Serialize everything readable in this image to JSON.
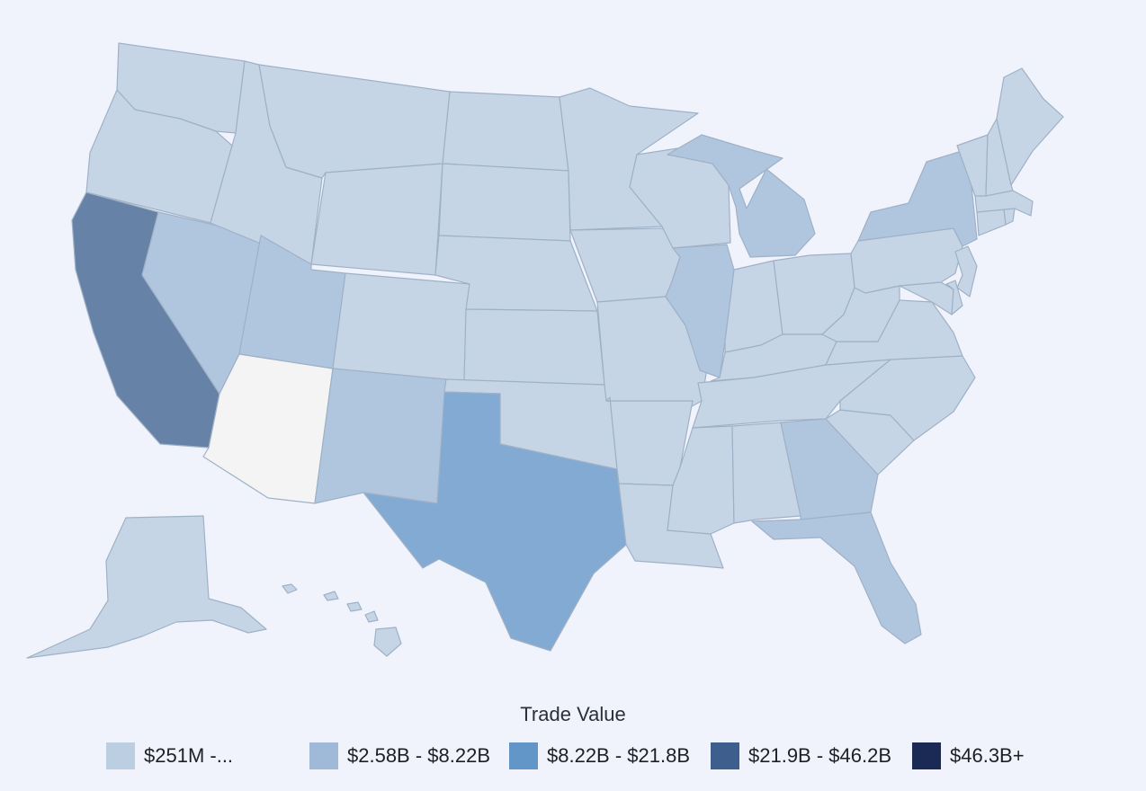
{
  "map": {
    "type": "choropleth",
    "region": "United States",
    "legend_title": "Trade Value",
    "bins": [
      {
        "label": "$251M -...",
        "color": "#bccfe2"
      },
      {
        "label": "$2.58B - $8.22B",
        "color": "#9fbad8"
      },
      {
        "label": "$8.22B - $21.8B",
        "color": "#6396c8"
      },
      {
        "label": "$21.9B - $46.2B",
        "color": "#3e5f8e"
      },
      {
        "label": "$46.3B+",
        "color": "#1b2a55"
      }
    ],
    "state_fills": {
      "WA": "#c5d5e5",
      "OR": "#c5d5e5",
      "CA": "#6682a6",
      "NV": "#afc6de",
      "ID": "#c5d5e5",
      "MT": "#c5d5e5",
      "WY": "#c5d5e5",
      "UT": "#afc6de",
      "AZ": "#f4f4f4",
      "CO": "#c5d5e5",
      "NM": "#afc6de",
      "ND": "#c5d5e5",
      "SD": "#c5d5e5",
      "NE": "#c5d5e5",
      "KS": "#c5d5e5",
      "OK": "#c5d5e5",
      "TX": "#83aad3",
      "MN": "#c5d5e5",
      "IA": "#c5d5e5",
      "MO": "#c5d5e5",
      "AR": "#c5d5e5",
      "LA": "#c5d5e5",
      "WI": "#c5d5e5",
      "IL": "#afc6de",
      "MS": "#c5d5e5",
      "MI": "#afc6de",
      "IN": "#c5d5e5",
      "KY": "#c5d5e5",
      "TN": "#c5d5e5",
      "AL": "#c5d5e5",
      "OH": "#c5d5e5",
      "GA": "#afc6de",
      "FL": "#afc6de",
      "SC": "#c5d5e5",
      "NC": "#c5d5e5",
      "VA": "#c5d5e5",
      "WV": "#c5d5e5",
      "PA": "#c5d5e5",
      "NY": "#afc6de",
      "MD": "#c5d5e5",
      "DE": "#c5d5e5",
      "NJ": "#c5d5e5",
      "CT": "#c5d5e5",
      "RI": "#c5d5e5",
      "MA": "#c5d5e5",
      "VT": "#c5d5e5",
      "NH": "#c5d5e5",
      "ME": "#c5d5e5",
      "AK": "#c5d5e5",
      "HI": "#c5d5e5"
    }
  }
}
